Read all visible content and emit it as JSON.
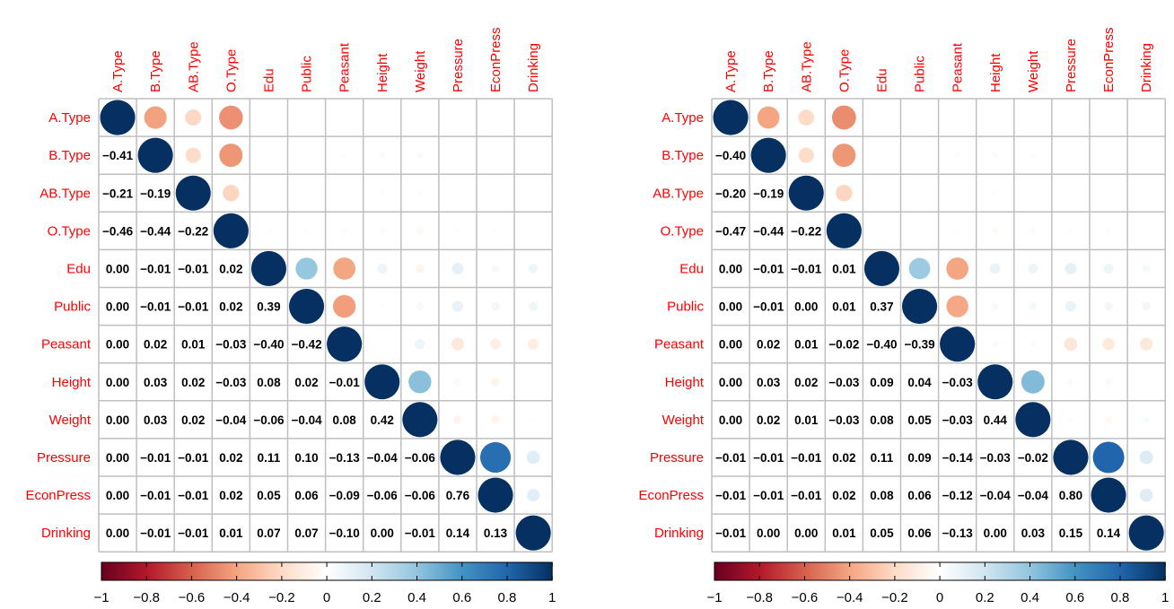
{
  "chart_data": [
    {
      "type": "heatmap",
      "labels": [
        "A.Type",
        "B.Type",
        "AB.Type",
        "O.Type",
        "Edu",
        "Public",
        "Peasant",
        "Height",
        "Weight",
        "Pressure",
        "EconPress",
        "Drinking"
      ],
      "matrix": [
        [
          1.0,
          -0.41,
          -0.21,
          -0.46,
          0.0,
          0.0,
          0.0,
          0.0,
          0.0,
          0.0,
          0.0,
          0.0
        ],
        [
          -0.41,
          1.0,
          -0.19,
          -0.44,
          -0.01,
          -0.01,
          0.02,
          0.03,
          0.03,
          -0.01,
          -0.01,
          -0.01
        ],
        [
          -0.21,
          -0.19,
          1.0,
          -0.22,
          -0.01,
          -0.01,
          0.01,
          0.02,
          0.02,
          -0.01,
          -0.01,
          -0.01
        ],
        [
          -0.46,
          -0.44,
          -0.22,
          1.0,
          0.02,
          0.02,
          -0.03,
          -0.03,
          -0.04,
          0.02,
          0.02,
          0.01
        ],
        [
          0.0,
          -0.01,
          -0.01,
          0.02,
          1.0,
          0.39,
          -0.4,
          0.08,
          -0.06,
          0.11,
          0.05,
          0.07
        ],
        [
          0.0,
          -0.01,
          -0.01,
          0.02,
          0.39,
          1.0,
          -0.42,
          0.02,
          -0.04,
          0.1,
          0.06,
          0.07
        ],
        [
          0.0,
          0.02,
          0.01,
          -0.03,
          -0.4,
          -0.42,
          1.0,
          -0.01,
          0.08,
          -0.13,
          -0.09,
          -0.1
        ],
        [
          0.0,
          0.03,
          0.02,
          -0.03,
          0.08,
          0.02,
          -0.01,
          1.0,
          0.42,
          -0.04,
          -0.06,
          0.0
        ],
        [
          0.0,
          0.03,
          0.02,
          -0.04,
          -0.06,
          -0.04,
          0.08,
          0.42,
          1.0,
          -0.06,
          -0.06,
          -0.01
        ],
        [
          0.0,
          -0.01,
          -0.01,
          0.02,
          0.11,
          0.1,
          -0.13,
          -0.04,
          -0.06,
          1.0,
          0.76,
          0.14
        ],
        [
          0.0,
          -0.01,
          -0.01,
          0.02,
          0.05,
          0.06,
          -0.09,
          -0.06,
          -0.06,
          0.76,
          1.0,
          0.13
        ],
        [
          0.0,
          -0.01,
          -0.01,
          0.01,
          0.07,
          0.07,
          -0.1,
          0.0,
          -0.01,
          0.14,
          0.13,
          1.0
        ]
      ],
      "upper": "circle",
      "lower": "number",
      "colorbar": {
        "range": [
          -1,
          1
        ],
        "ticks": [
          "−1",
          "−0.8",
          "−0.6",
          "−0.4",
          "−0.2",
          "0",
          "0.2",
          "0.4",
          "0.6",
          "0.8",
          "1"
        ]
      }
    },
    {
      "type": "heatmap",
      "labels": [
        "A.Type",
        "B.Type",
        "AB.Type",
        "O.Type",
        "Edu",
        "Public",
        "Peasant",
        "Height",
        "Weight",
        "Pressure",
        "EconPress",
        "Drinking"
      ],
      "matrix": [
        [
          1.0,
          -0.4,
          -0.2,
          -0.47,
          0.0,
          0.0,
          0.0,
          0.0,
          0.0,
          -0.01,
          -0.01,
          -0.01
        ],
        [
          -0.4,
          1.0,
          -0.19,
          -0.44,
          -0.01,
          -0.01,
          0.02,
          0.03,
          0.02,
          -0.01,
          -0.01,
          0.0
        ],
        [
          -0.2,
          -0.19,
          1.0,
          -0.22,
          -0.01,
          0.0,
          0.01,
          0.02,
          0.01,
          -0.01,
          -0.01,
          0.0
        ],
        [
          -0.47,
          -0.44,
          -0.22,
          1.0,
          0.01,
          0.01,
          -0.02,
          -0.03,
          -0.03,
          0.02,
          0.02,
          0.01
        ],
        [
          0.0,
          -0.01,
          -0.01,
          0.01,
          1.0,
          0.37,
          -0.4,
          0.09,
          0.08,
          0.11,
          0.08,
          0.05
        ],
        [
          0.0,
          -0.01,
          0.0,
          0.01,
          0.37,
          1.0,
          -0.39,
          0.04,
          0.05,
          0.09,
          0.06,
          0.06
        ],
        [
          0.0,
          0.02,
          0.01,
          -0.02,
          -0.4,
          -0.39,
          1.0,
          -0.03,
          -0.03,
          -0.14,
          -0.12,
          -0.13
        ],
        [
          0.0,
          0.03,
          0.02,
          -0.03,
          0.09,
          0.04,
          -0.03,
          1.0,
          0.44,
          -0.03,
          -0.04,
          0.0
        ],
        [
          0.0,
          0.02,
          0.01,
          -0.03,
          0.08,
          0.05,
          -0.03,
          0.44,
          1.0,
          -0.02,
          -0.04,
          0.03
        ],
        [
          -0.01,
          -0.01,
          -0.01,
          0.02,
          0.11,
          0.09,
          -0.14,
          -0.03,
          -0.02,
          1.0,
          0.8,
          0.15
        ],
        [
          -0.01,
          -0.01,
          -0.01,
          0.02,
          0.08,
          0.06,
          -0.12,
          -0.04,
          -0.04,
          0.8,
          1.0,
          0.14
        ],
        [
          -0.01,
          0.0,
          0.0,
          0.01,
          0.05,
          0.06,
          -0.13,
          0.0,
          0.03,
          0.15,
          0.14,
          1.0
        ]
      ],
      "upper": "circle",
      "lower": "number",
      "colorbar": {
        "range": [
          -1,
          1
        ],
        "ticks": [
          "−1",
          "−0.8",
          "−0.6",
          "−0.4",
          "−0.2",
          "0",
          "0.2",
          "0.4",
          "0.6",
          "0.8",
          "1"
        ]
      }
    }
  ],
  "colors": {
    "label": "#ff0000",
    "grid": "#bfbfbf",
    "palette": [
      "#67001f",
      "#b2182b",
      "#d6604d",
      "#f4a582",
      "#fddbc7",
      "#ffffff",
      "#d1e5f0",
      "#92c5de",
      "#4393c3",
      "#2166ac",
      "#053061"
    ]
  }
}
